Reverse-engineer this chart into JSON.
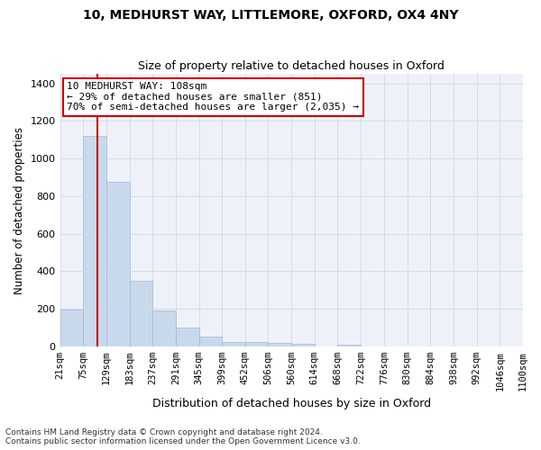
{
  "title1": "10, MEDHURST WAY, LITTLEMORE, OXFORD, OX4 4NY",
  "title2": "Size of property relative to detached houses in Oxford",
  "xlabel": "Distribution of detached houses by size in Oxford",
  "ylabel": "Number of detached properties",
  "footnote1": "Contains HM Land Registry data © Crown copyright and database right 2024.",
  "footnote2": "Contains public sector information licensed under the Open Government Licence v3.0.",
  "annotation_line1": "10 MEDHURST WAY: 108sqm",
  "annotation_line2": "← 29% of detached houses are smaller (851)",
  "annotation_line3": "70% of semi-detached houses are larger (2,035) →",
  "bar_color": "#c9d9ec",
  "bar_edge_color": "#a0b8d8",
  "vline_color": "#cc0000",
  "grid_color": "#d0d8e8",
  "background_color": "#eef2f8",
  "bin_edges": [
    21,
    75,
    129,
    183,
    237,
    291,
    345,
    399,
    452,
    506,
    560,
    614,
    668,
    722,
    776,
    830,
    884,
    938,
    992,
    1046,
    1100
  ],
  "bar_heights": [
    197,
    1120,
    878,
    350,
    192,
    100,
    52,
    25,
    22,
    18,
    14,
    0,
    12,
    0,
    0,
    0,
    0,
    0,
    0,
    0
  ],
  "vline_x": 108,
  "ylim": [
    0,
    1450
  ],
  "yticks": [
    0,
    200,
    400,
    600,
    800,
    1000,
    1200,
    1400
  ]
}
